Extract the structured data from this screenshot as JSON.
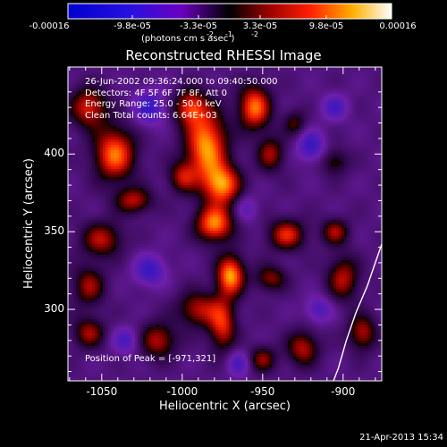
{
  "chart_data": {
    "type": "heatmap",
    "title": "Reconstructed RHESSI Image",
    "xlabel": "Heliocentric X (arcsec)",
    "ylabel": "Heliocentric Y (arcsec)",
    "xlim": [
      -1071,
      -876
    ],
    "ylim": [
      254,
      456
    ],
    "x_ticks": [
      {
        "value": -1050,
        "label": "-1050"
      },
      {
        "value": -1000,
        "label": "-1000"
      },
      {
        "value": -950,
        "label": "-950"
      },
      {
        "value": -900,
        "label": "-900"
      }
    ],
    "y_ticks": [
      {
        "value": 300,
        "label": "300"
      },
      {
        "value": 350,
        "label": "350"
      },
      {
        "value": 400,
        "label": "400"
      }
    ],
    "colorbar": {
      "range": [
        -0.00016,
        0.00016
      ],
      "ticks": [
        "-0.00016",
        "-9.8e-05",
        "-3.3e-05",
        "3.3e-05",
        "9.8e-05",
        "0.00016"
      ],
      "unit_text": "(photons cm  s  asec )",
      "unit_exponents": [
        "-2",
        "-1",
        "-2"
      ]
    },
    "annotations": [
      "26-Jun-2002 09:36:24.000 to 09:40:50.000",
      "Detectors: 4F 5F 6F 7F 8F, Att 0",
      "Energy Range: 25.0 - 50.0 keV",
      "Clean     Total counts: 6.64E+03"
    ],
    "peak_label": "Position of Peak = [-971,321]",
    "peak": {
      "x": -971,
      "y": 321
    },
    "features": {
      "positive": [
        {
          "x": -1042,
          "y": 400,
          "sx": 9,
          "sy": 12,
          "a": 0.9
        },
        {
          "x": -1058,
          "y": 430,
          "sx": 8,
          "sy": 9,
          "a": 0.7
        },
        {
          "x": -1030,
          "y": 370,
          "sx": 8,
          "sy": 6,
          "a": 0.6
        },
        {
          "x": -1050,
          "y": 345,
          "sx": 9,
          "sy": 8,
          "a": 0.6
        },
        {
          "x": -1058,
          "y": 315,
          "sx": 7,
          "sy": 9,
          "a": 0.55
        },
        {
          "x": -1058,
          "y": 285,
          "sx": 7,
          "sy": 7,
          "a": 0.55
        },
        {
          "x": -1015,
          "y": 280,
          "sx": 8,
          "sy": 8,
          "a": 0.6
        },
        {
          "x": -990,
          "y": 300,
          "sx": 9,
          "sy": 8,
          "a": 0.6
        },
        {
          "x": -985,
          "y": 405,
          "sx": 9,
          "sy": 16,
          "a": 1.0
        },
        {
          "x": -975,
          "y": 380,
          "sx": 8,
          "sy": 9,
          "a": 0.9
        },
        {
          "x": -980,
          "y": 355,
          "sx": 8,
          "sy": 8,
          "a": 0.95
        },
        {
          "x": -970,
          "y": 322,
          "sx": 6,
          "sy": 9,
          "a": 1.0
        },
        {
          "x": -975,
          "y": 290,
          "sx": 6,
          "sy": 12,
          "a": 0.7
        },
        {
          "x": -995,
          "y": 430,
          "sx": 7,
          "sy": 8,
          "a": 0.7
        },
        {
          "x": -1000,
          "y": 385,
          "sx": 6,
          "sy": 7,
          "a": 0.55
        },
        {
          "x": -955,
          "y": 430,
          "sx": 7,
          "sy": 10,
          "a": 0.9
        },
        {
          "x": -945,
          "y": 400,
          "sx": 6,
          "sy": 8,
          "a": 0.55
        },
        {
          "x": -935,
          "y": 348,
          "sx": 8,
          "sy": 7,
          "a": 0.7
        },
        {
          "x": -945,
          "y": 320,
          "sx": 7,
          "sy": 6,
          "a": 0.5
        },
        {
          "x": -925,
          "y": 275,
          "sx": 7,
          "sy": 8,
          "a": 0.6
        },
        {
          "x": -950,
          "y": 268,
          "sx": 6,
          "sy": 6,
          "a": 0.5
        },
        {
          "x": -905,
          "y": 350,
          "sx": 6,
          "sy": 6,
          "a": 0.55
        },
        {
          "x": -900,
          "y": 320,
          "sx": 7,
          "sy": 10,
          "a": 0.6
        },
        {
          "x": -888,
          "y": 285,
          "sx": 6,
          "sy": 8,
          "a": 0.6
        },
        {
          "x": -905,
          "y": 395,
          "sx": 6,
          "sy": 6,
          "a": 0.4
        },
        {
          "x": -930,
          "y": 420,
          "sx": 5,
          "sy": 6,
          "a": 0.4
        }
      ],
      "negative": [
        {
          "x": -1020,
          "y": 430,
          "sx": 7,
          "sy": 8,
          "a": 0.25
        },
        {
          "x": -1020,
          "y": 325,
          "sx": 7,
          "sy": 7,
          "a": 0.25
        },
        {
          "x": -1035,
          "y": 280,
          "sx": 6,
          "sy": 6,
          "a": 0.2
        },
        {
          "x": -965,
          "y": 265,
          "sx": 5,
          "sy": 6,
          "a": 0.2
        },
        {
          "x": -920,
          "y": 405,
          "sx": 6,
          "sy": 7,
          "a": 0.25
        },
        {
          "x": -905,
          "y": 430,
          "sx": 6,
          "sy": 6,
          "a": 0.2
        },
        {
          "x": -915,
          "y": 300,
          "sx": 6,
          "sy": 6,
          "a": 0.2
        },
        {
          "x": -960,
          "y": 365,
          "sx": 5,
          "sy": 6,
          "a": 0.15
        }
      ]
    },
    "limb_curve": [
      {
        "x": -876,
        "y": 342
      },
      {
        "x": -880,
        "y": 330
      },
      {
        "x": -885,
        "y": 315
      },
      {
        "x": -892,
        "y": 298
      },
      {
        "x": -898,
        "y": 280
      },
      {
        "x": -903,
        "y": 262
      },
      {
        "x": -906,
        "y": 254
      }
    ]
  },
  "footer": {
    "timestamp": "21-Apr-2013 15:34"
  }
}
